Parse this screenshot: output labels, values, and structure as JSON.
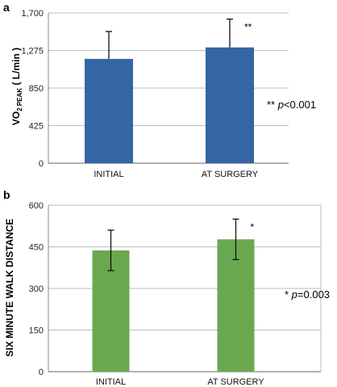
{
  "chart_data": [
    {
      "type": "bar",
      "panel_label": "a",
      "ylabel_main": "VO",
      "ylabel_sub": "2 PEAK",
      "ylabel_tail": " ( L/min )",
      "categories": [
        "INITIAL",
        "AT SURGERY"
      ],
      "values": [
        1180,
        1310
      ],
      "error_plus": [
        310,
        320
      ],
      "ylim": [
        0,
        1700
      ],
      "yticks": [
        "0",
        "425",
        "850",
        "1,275",
        "1,700"
      ],
      "grid": true,
      "bar_color": "#3465a4",
      "significance": [
        "",
        "**"
      ],
      "p_note_prefix": "** ",
      "p_note_italic": "p",
      "p_note_value": "<0.001"
    },
    {
      "type": "bar",
      "panel_label": "b",
      "ylabel": "SIX MINUTE  WALK  DISTANCE",
      "categories": [
        "INITIAL",
        "AT SURGERY"
      ],
      "values": [
        437,
        477
      ],
      "error_plus": [
        73,
        73
      ],
      "error_minus": [
        73,
        73
      ],
      "ylim": [
        0,
        600
      ],
      "yticks": [
        "0",
        "150",
        "300",
        "450",
        "600"
      ],
      "grid": true,
      "bar_color": "#6aa84f",
      "significance": [
        "",
        "*"
      ],
      "p_note_prefix": "* ",
      "p_note_italic": "p",
      "p_note_value": "=0.003"
    }
  ]
}
